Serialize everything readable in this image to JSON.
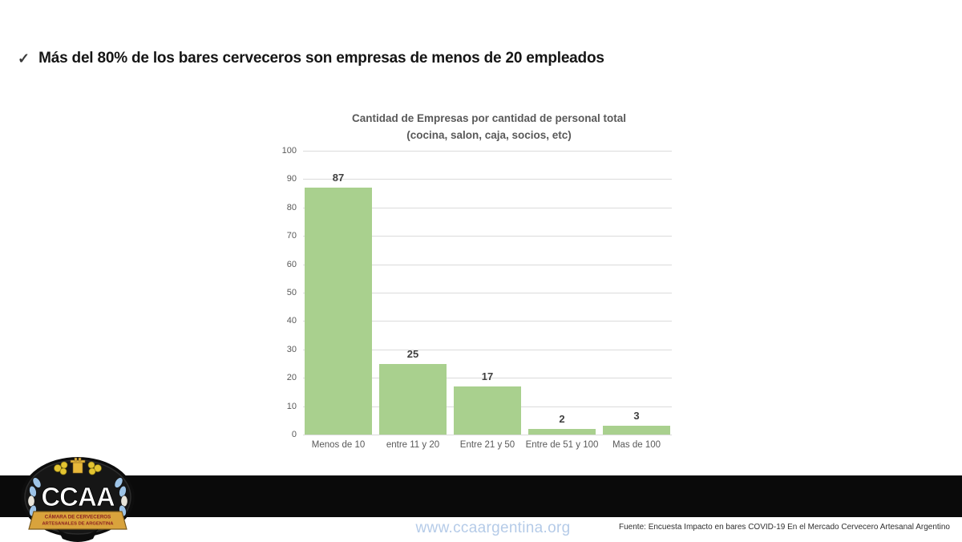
{
  "page": {
    "background": "#ffffff"
  },
  "headline": {
    "check_glyph": "✓",
    "text": "Más del 80% de los bares cerveceros son empresas de menos de 20 empleados"
  },
  "chart_data": {
    "type": "bar",
    "title": "Cantidad de Empresas por cantidad de personal total",
    "subtitle": "(cocina, salon, caja, socios, etc)",
    "categories": [
      "Menos de 10",
      "entre 11 y 20",
      "Entre 21 y 50",
      "Entre de 51 y 100",
      "Mas de 100"
    ],
    "values": [
      87,
      25,
      17,
      2,
      3
    ],
    "xlabel": "",
    "ylabel": "",
    "ylim": [
      0,
      100
    ],
    "ytick_step": 10,
    "grid": true,
    "legend": "none",
    "bar_color": "#A9D08E",
    "gridline_color": "#dbdbdb",
    "tick_label_color": "#595959",
    "value_label_color": "#3f3f3f",
    "title_color": "#595959"
  },
  "footer": {
    "band_color": "#0a0a0a",
    "website": "www.ccaargentina.org",
    "website_color": "#b5cbe8",
    "source": "Fuente: Encuesta Impacto en bares COVID-19 En el Mercado Cervecero Artesanal Argentino"
  },
  "logo": {
    "acronym": "CCAA",
    "banner_line1": "CÁMARA DE CERVECEROS",
    "banner_line2": "ARTESANALES DE ARGENTINA",
    "badge_color": "#141414",
    "banner_color": "#d9a33c",
    "banner_text_color": "#8b2020",
    "wheat_color": "#9dc3e6",
    "hops_color": "#e3c431"
  }
}
